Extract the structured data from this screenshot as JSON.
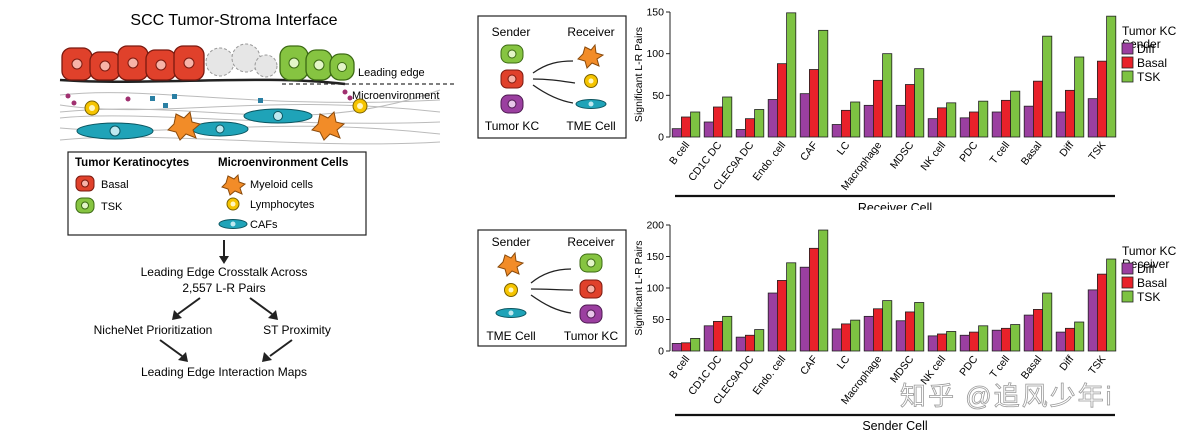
{
  "left_panel": {
    "title": "SCC Tumor-Stroma Interface",
    "leading_edge_label": "Leading edge",
    "microenvironment_label": "Microenvironment",
    "legend": {
      "tumor_header": "Tumor Keratinocytes",
      "micro_header": "Microenvironment Cells",
      "basal": "Basal",
      "tsk": "TSK",
      "myeloid": "Myeloid cells",
      "lymphocytes": "Lymphocytes",
      "cafs": "CAFs"
    },
    "flow": {
      "crosstalk_line1": "Leading Edge Crosstalk Across",
      "crosstalk_line2": "2,557 L-R Pairs",
      "nichenet": "NicheNet Prioritization",
      "st_proximity": "ST Proximity",
      "maps": "Leading Edge Interaction Maps"
    }
  },
  "schematics": {
    "top": {
      "sender": "Sender",
      "receiver": "Receiver",
      "left_label": "Tumor KC",
      "right_label": "TME Cell"
    },
    "bottom": {
      "sender": "Sender",
      "receiver": "Receiver",
      "left_label": "TME Cell",
      "right_label": "Tumor KC"
    }
  },
  "colors": {
    "diff": "#9b3fa0",
    "basal": "#e8212a",
    "tsk": "#7dc242",
    "basal_cell": "#e0412b",
    "tsk_cell": "#86c441",
    "myeloid": "#f28c28",
    "lymph": "#f5c400",
    "caf": "#1fa3b8"
  },
  "watermark": "知乎 @追风少年i",
  "chart_data": [
    {
      "type": "bar",
      "ylabel": "Significant L-R Pairs",
      "xlabel": "Receiver Cell",
      "ylim": [
        0,
        150
      ],
      "yticks": [
        0,
        50,
        100,
        150
      ],
      "legend_title": "Tumor KC Sender",
      "legend_title_lines": [
        "Tumor KC",
        "Sender"
      ],
      "legend_position": "right",
      "categories": [
        "B cell",
        "CD1C DC",
        "CLEC9A DC",
        "Endo. cell",
        "CAF",
        "LC",
        "Macrophage",
        "MDSC",
        "NK cell",
        "PDC",
        "T cell",
        "Basal",
        "Diff",
        "TSK"
      ],
      "series": [
        {
          "name": "Diff",
          "values": [
            10,
            18,
            9,
            45,
            52,
            15,
            38,
            38,
            22,
            23,
            30,
            37,
            30,
            46
          ]
        },
        {
          "name": "Basal",
          "values": [
            24,
            36,
            22,
            88,
            81,
            32,
            68,
            63,
            35,
            30,
            44,
            67,
            56,
            91
          ]
        },
        {
          "name": "TSK",
          "values": [
            30,
            48,
            33,
            149,
            128,
            42,
            100,
            82,
            41,
            43,
            55,
            121,
            96,
            145
          ]
        }
      ]
    },
    {
      "type": "bar",
      "ylabel": "Significant L-R Pairs",
      "xlabel": "Sender Cell",
      "ylim": [
        0,
        200
      ],
      "yticks": [
        0,
        50,
        100,
        150,
        200
      ],
      "legend_title": "Tumor KC Receiver",
      "legend_title_lines": [
        "Tumor KC",
        "Receiver"
      ],
      "legend_position": "right",
      "categories": [
        "B cell",
        "CD1C DC",
        "CLEC9A DC",
        "Endo. cell",
        "CAF",
        "LC",
        "Macrophage",
        "MDSC",
        "NK cell",
        "PDC",
        "T cell",
        "Basal",
        "Diff",
        "TSK"
      ],
      "series": [
        {
          "name": "Diff",
          "values": [
            12,
            40,
            22,
            92,
            133,
            35,
            55,
            48,
            24,
            25,
            33,
            57,
            30,
            97
          ]
        },
        {
          "name": "Basal",
          "values": [
            13,
            47,
            25,
            112,
            163,
            43,
            67,
            62,
            27,
            30,
            36,
            66,
            36,
            122
          ]
        },
        {
          "name": "TSK",
          "values": [
            20,
            55,
            34,
            140,
            192,
            49,
            80,
            77,
            31,
            40,
            42,
            92,
            46,
            146
          ]
        }
      ]
    }
  ]
}
